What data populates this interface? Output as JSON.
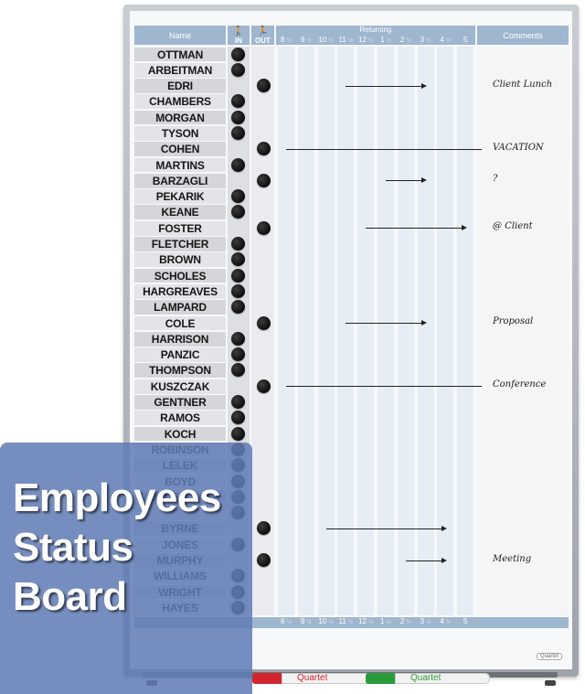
{
  "header": {
    "name_label": "Name",
    "in_label": "IN",
    "out_label": "OUT",
    "returning_label": "Returning",
    "comments_label": "Comments",
    "hours": [
      "8",
      "9",
      "10",
      "11",
      "12",
      "1",
      "2",
      "3",
      "4",
      "5"
    ],
    "half_mark": "½"
  },
  "employees": [
    {
      "name": "OTTMAN",
      "status": "in",
      "comment": "",
      "arrow": null
    },
    {
      "name": "ARBEITMAN",
      "status": "in",
      "comment": "",
      "arrow": null
    },
    {
      "name": "EDRI",
      "status": "out",
      "comment": "Client Lunch",
      "arrow": {
        "from": "11",
        "to": "3",
        "head": true
      }
    },
    {
      "name": "CHAMBERS",
      "status": "in",
      "comment": "",
      "arrow": null
    },
    {
      "name": "MORGAN",
      "status": "in",
      "comment": "",
      "arrow": null
    },
    {
      "name": "TYSON",
      "status": "in",
      "comment": "",
      "arrow": null
    },
    {
      "name": "COHEN",
      "status": "out",
      "comment": "VACATION",
      "arrow": {
        "from": "8",
        "to": "5",
        "head": false
      }
    },
    {
      "name": "MARTINS",
      "status": "in",
      "comment": "",
      "arrow": null
    },
    {
      "name": "BARZAGLI",
      "status": "out",
      "comment": "?",
      "arrow": {
        "from": "1",
        "to": "3",
        "head": true
      }
    },
    {
      "name": "PEKARIK",
      "status": "in",
      "comment": "",
      "arrow": null
    },
    {
      "name": "KEANE",
      "status": "in",
      "comment": "",
      "arrow": null
    },
    {
      "name": "FOSTER",
      "status": "out",
      "comment": "@ Client",
      "arrow": {
        "from": "12",
        "to": "5",
        "head": true
      }
    },
    {
      "name": "FLETCHER",
      "status": "in",
      "comment": "",
      "arrow": null
    },
    {
      "name": "BROWN",
      "status": "in",
      "comment": "",
      "arrow": null
    },
    {
      "name": "SCHOLES",
      "status": "in",
      "comment": "",
      "arrow": null
    },
    {
      "name": "HARGREAVES",
      "status": "in",
      "comment": "",
      "arrow": null
    },
    {
      "name": "LAMPARD",
      "status": "in",
      "comment": "",
      "arrow": null
    },
    {
      "name": "COLE",
      "status": "out",
      "comment": "Proposal",
      "arrow": {
        "from": "11",
        "to": "3",
        "head": true
      }
    },
    {
      "name": "HARRISON",
      "status": "in",
      "comment": "",
      "arrow": null
    },
    {
      "name": "PANZIC",
      "status": "in",
      "comment": "",
      "arrow": null
    },
    {
      "name": "THOMPSON",
      "status": "in",
      "comment": "",
      "arrow": null
    },
    {
      "name": "KUSZCZAK",
      "status": "out",
      "comment": "Conference",
      "arrow": {
        "from": "8",
        "to": "5",
        "head": false
      }
    },
    {
      "name": "GENTNER",
      "status": "in",
      "comment": "",
      "arrow": null
    },
    {
      "name": "RAMOS",
      "status": "in",
      "comment": "",
      "arrow": null
    },
    {
      "name": "KOCH",
      "status": "in",
      "comment": "",
      "arrow": null
    },
    {
      "name": "ROBINSON",
      "status": "in",
      "comment": "",
      "arrow": null
    },
    {
      "name": "LELEK",
      "status": "in",
      "comment": "",
      "arrow": null
    },
    {
      "name": "BOYD",
      "status": "in",
      "comment": "",
      "arrow": null
    },
    {
      "name": "VAN DER SAAR",
      "status": "in",
      "comment": "",
      "arrow": null
    },
    {
      "name": "",
      "status": "in",
      "comment": "",
      "arrow": null
    },
    {
      "name": "BYRNE",
      "status": "out",
      "comment": "",
      "arrow": {
        "from": "10",
        "to": "4",
        "head": true
      }
    },
    {
      "name": "JONES",
      "status": "in",
      "comment": "",
      "arrow": null
    },
    {
      "name": "MURPHY",
      "status": "out",
      "comment": "Meeting",
      "arrow": {
        "from": "2",
        "to": "4",
        "head": true
      }
    },
    {
      "name": "WILLIAMS",
      "status": "in",
      "comment": "",
      "arrow": null
    },
    {
      "name": "WRIGHT",
      "status": "in",
      "comment": "",
      "arrow": null
    },
    {
      "name": "HAYES",
      "status": "in",
      "comment": "",
      "arrow": null
    }
  ],
  "overlay": {
    "title": "Employees\nStatus\nBoard"
  },
  "brand": {
    "small_logo": "Quartet",
    "marker_red_label": "Quartet",
    "marker_green_label": "Quartet"
  },
  "colors": {
    "header_blue": "#9fb6cf",
    "overlay_blue": "#607cb4",
    "marker_red": "#d2262e",
    "marker_green": "#2a9a3a"
  }
}
